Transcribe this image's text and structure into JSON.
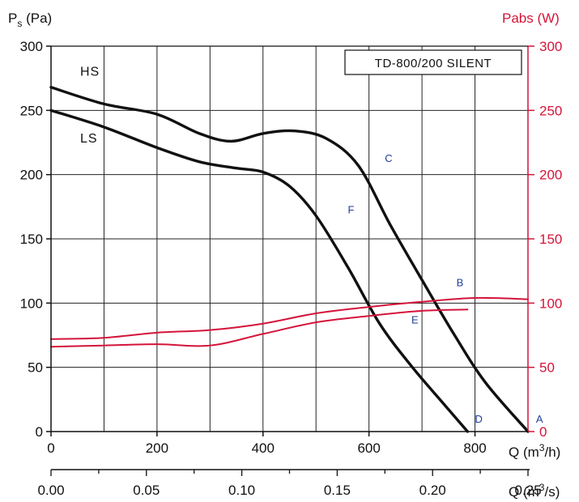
{
  "chart_data": {
    "type": "line",
    "model_label": "TD-800/200 SILENT",
    "y_left": {
      "label_main": "P",
      "label_sub": "s",
      "label_rest": " (Pa)",
      "ticks": [
        0,
        50,
        100,
        150,
        200,
        250,
        300
      ],
      "lim": [
        0,
        300
      ]
    },
    "y_right": {
      "label": "Pabs (W)",
      "ticks": [
        0,
        50,
        100,
        150,
        200,
        250,
        300
      ],
      "lim": [
        0,
        300
      ],
      "color": "#d4143a"
    },
    "x_primary": {
      "label_main": "Q (m",
      "label_sup": "3",
      "label_rest": "/h)",
      "ticks": [
        0,
        200,
        400,
        600,
        800
      ],
      "lim": [
        0,
        900
      ]
    },
    "x_secondary": {
      "label_main": "Q (m",
      "label_sup": "3",
      "label_rest": "/s)",
      "ticks": [
        "0.00",
        "0.05",
        "0.10",
        "0.15",
        "0.20",
        "0.25"
      ],
      "tick_values": [
        0,
        0.05,
        0.1,
        0.15,
        0.2,
        0.25
      ]
    },
    "series": [
      {
        "name": "HS",
        "axis": "left",
        "color": "#111111",
        "x": [
          0,
          100,
          200,
          280,
          340,
          400,
          460,
          520,
          580,
          640,
          700,
          760,
          820,
          900
        ],
        "y": [
          268,
          255,
          247,
          232,
          226,
          232,
          234,
          228,
          207,
          161,
          118,
          76,
          38,
          0
        ]
      },
      {
        "name": "LS",
        "axis": "left",
        "color": "#111111",
        "x": [
          0,
          100,
          200,
          280,
          350,
          400,
          450,
          500,
          560,
          620,
          680,
          740,
          786
        ],
        "y": [
          250,
          237,
          221,
          210,
          205,
          202,
          191,
          168,
          128,
          84,
          51,
          22,
          0
        ]
      },
      {
        "name": "Pabs HS",
        "axis": "right",
        "color": "#d4143a",
        "x": [
          0,
          100,
          200,
          300,
          400,
          500,
          600,
          700,
          800,
          900
        ],
        "y": [
          72,
          73,
          77,
          79,
          84,
          92,
          97,
          101,
          104,
          103
        ]
      },
      {
        "name": "Pabs LS",
        "axis": "right",
        "color": "#d4143a",
        "x": [
          0,
          100,
          200,
          300,
          400,
          500,
          600,
          700,
          786
        ],
        "y": [
          66,
          67,
          68,
          67,
          76,
          85,
          90,
          94,
          95
        ]
      }
    ],
    "curve_labels": [
      {
        "text": "HS",
        "x": 55,
        "y": 277
      },
      {
        "text": "LS",
        "x": 55,
        "y": 225
      }
    ],
    "point_labels": [
      {
        "text": "A",
        "x": 915,
        "y": 7
      },
      {
        "text": "B",
        "x": 765,
        "y": 113
      },
      {
        "text": "C",
        "x": 630,
        "y": 210
      },
      {
        "text": "D",
        "x": 800,
        "y": 7
      },
      {
        "text": "E",
        "x": 680,
        "y": 84
      },
      {
        "text": "F",
        "x": 560,
        "y": 170
      }
    ]
  }
}
